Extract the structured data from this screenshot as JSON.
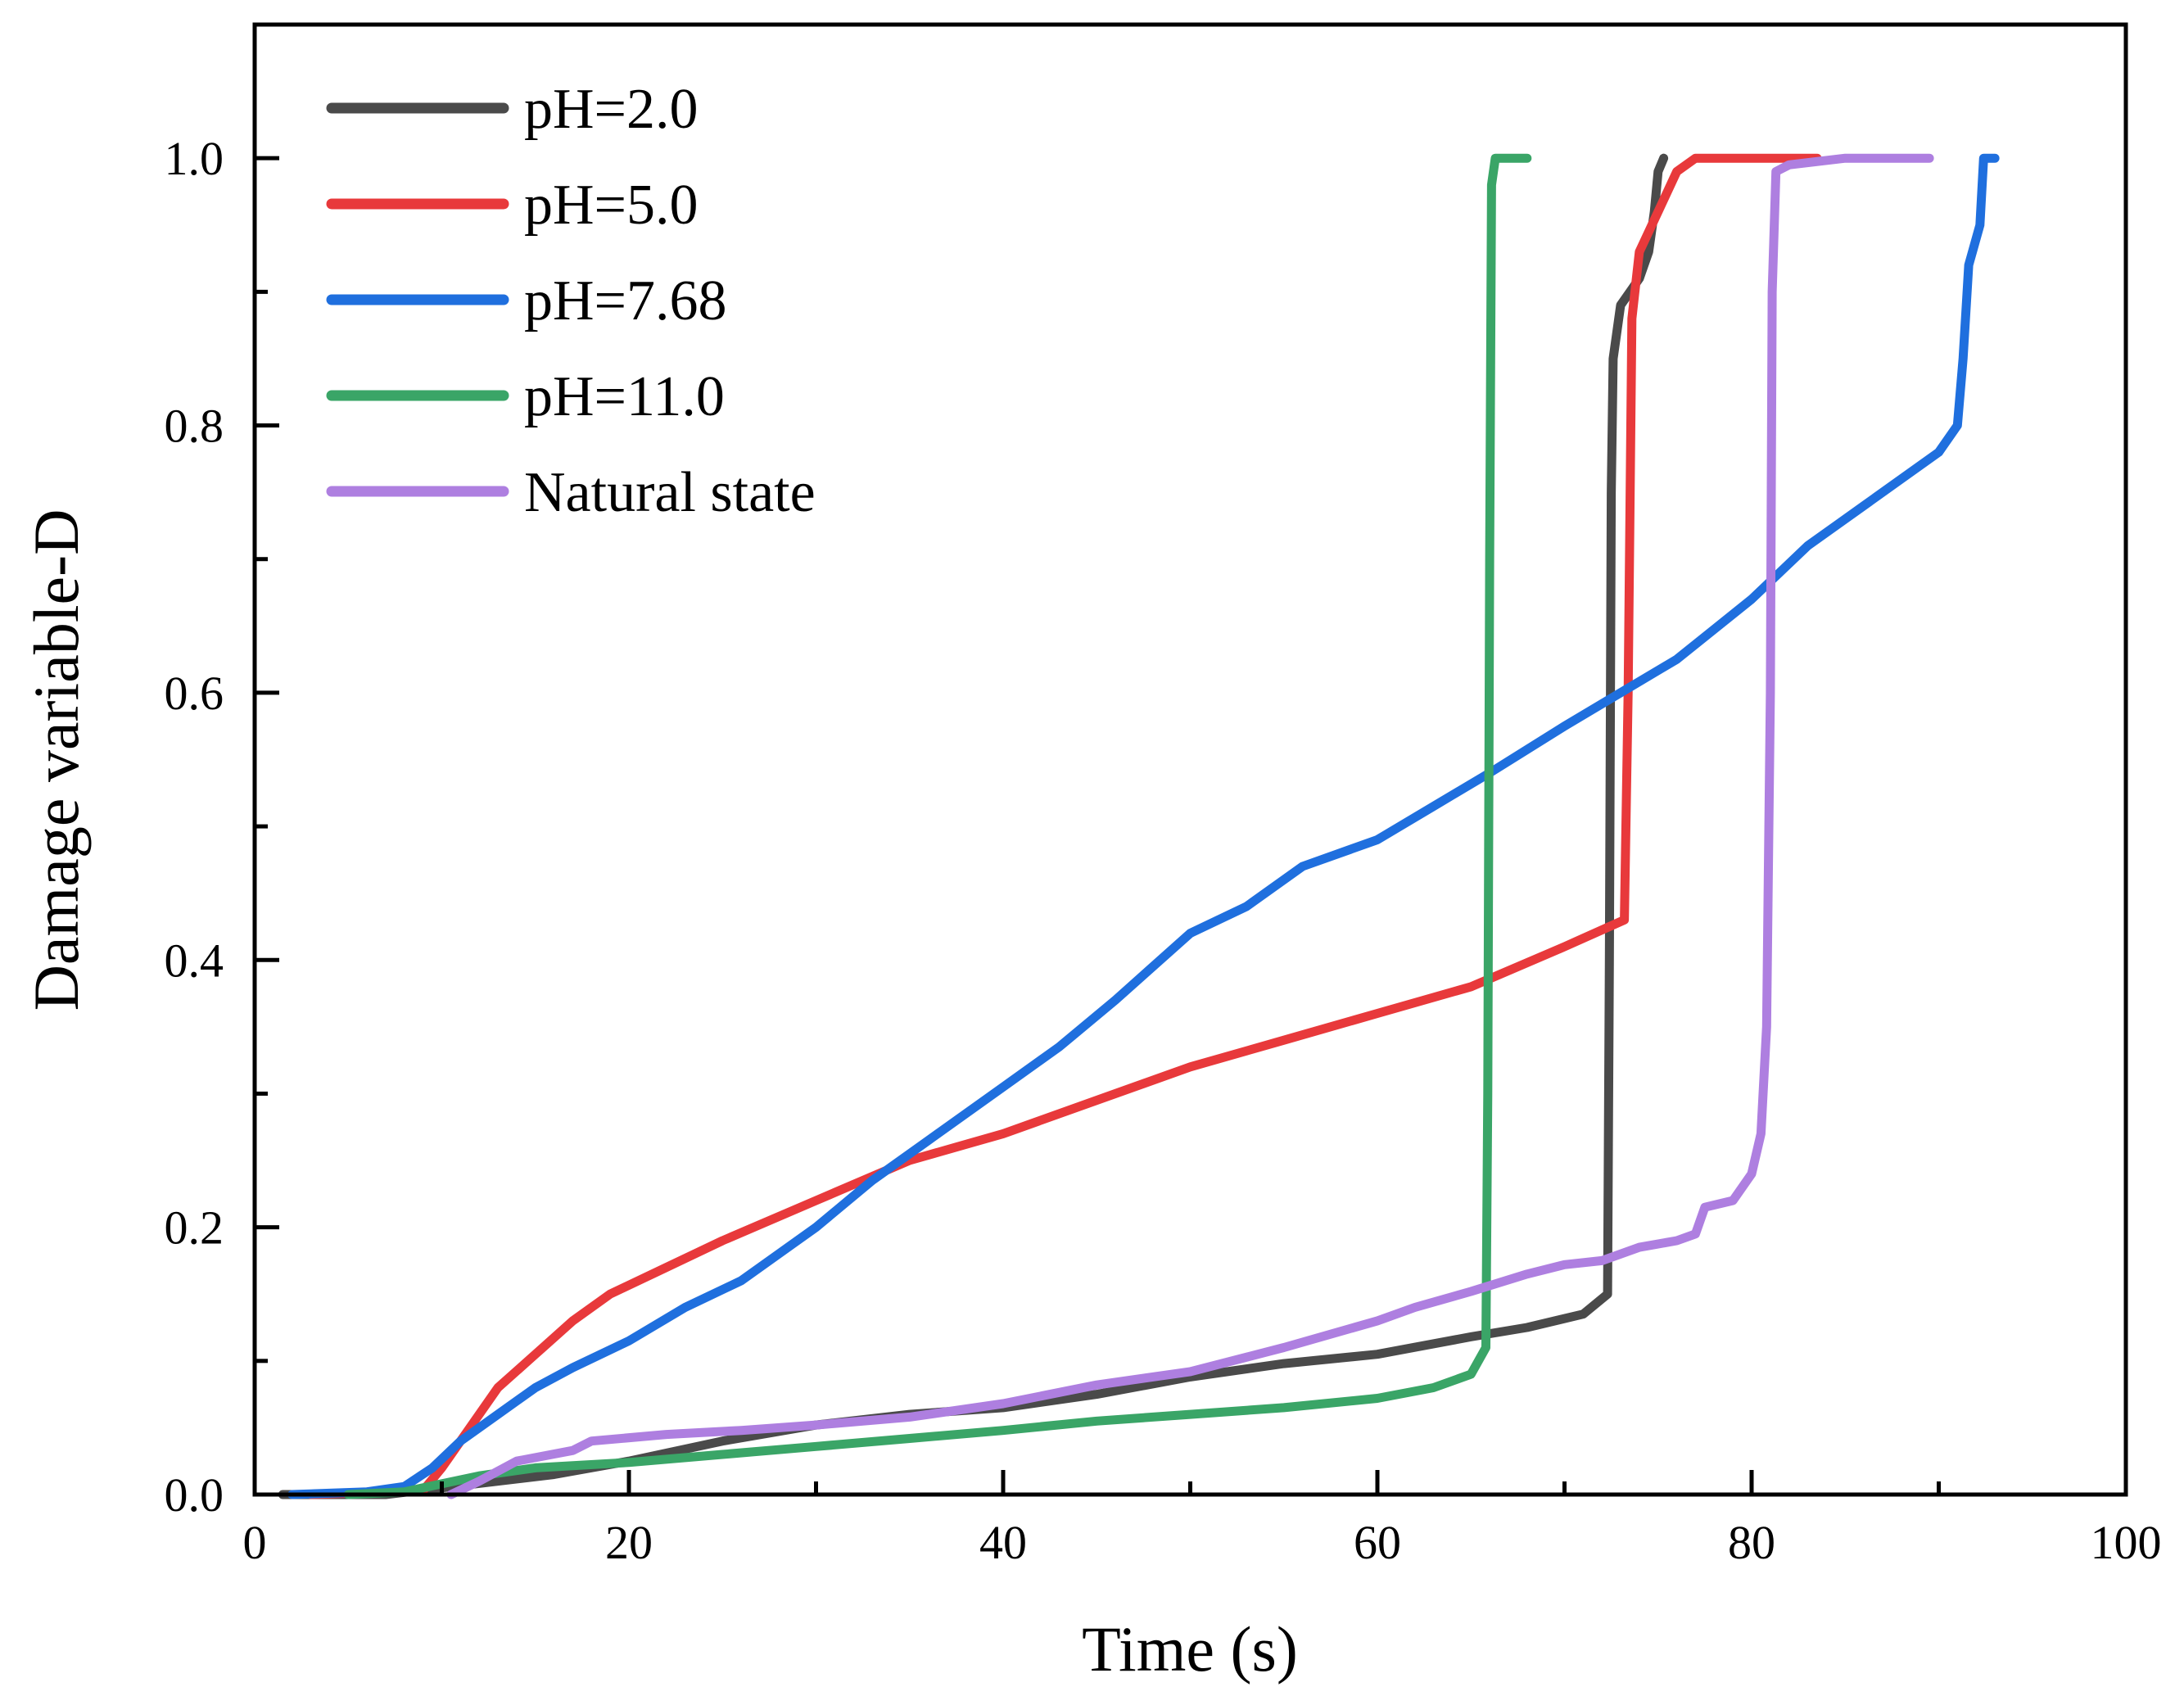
{
  "chart_data": {
    "type": "line",
    "title": "",
    "xlabel": "Time (s)",
    "ylabel": "Damage variable-D",
    "xlim": [
      0,
      100
    ],
    "ylim": [
      0,
      1.1
    ],
    "x_ticks": [
      0,
      20,
      40,
      60,
      80,
      100
    ],
    "x_tick_labels": [
      "0",
      "20",
      "40",
      "60",
      "80",
      "100"
    ],
    "y_ticks": [
      0,
      0.2,
      0.4,
      0.6,
      0.8,
      1.0
    ],
    "y_tick_labels": [
      "0.0",
      "0.2",
      "0.4",
      "0.6",
      "0.8",
      "1.0"
    ],
    "grid": false,
    "legend_position": "top-left",
    "series": [
      {
        "name": "pH=2.0",
        "color": "#4a4a4a",
        "points": [
          [
            1.5,
            0
          ],
          [
            7,
            0
          ],
          [
            10,
            0.005
          ],
          [
            13,
            0.01
          ],
          [
            16,
            0.015
          ],
          [
            20,
            0.025
          ],
          [
            25,
            0.04
          ],
          [
            30,
            0.052
          ],
          [
            35,
            0.06
          ],
          [
            40,
            0.065
          ],
          [
            45,
            0.075
          ],
          [
            50,
            0.088
          ],
          [
            55,
            0.098
          ],
          [
            60,
            0.105
          ],
          [
            65,
            0.118
          ],
          [
            68,
            0.125
          ],
          [
            71,
            0.135
          ],
          [
            72.3,
            0.15
          ],
          [
            72.4,
            0.4
          ],
          [
            72.5,
            0.75
          ],
          [
            72.6,
            0.85
          ],
          [
            73,
            0.89
          ],
          [
            74,
            0.91
          ],
          [
            74.5,
            0.93
          ],
          [
            74.8,
            0.96
          ],
          [
            75,
            0.99
          ],
          [
            75.3,
            1.0
          ]
        ]
      },
      {
        "name": "pH=5.0",
        "color": "#e8393b",
        "points": [
          [
            3,
            0
          ],
          [
            9,
            0.003
          ],
          [
            10,
            0.02
          ],
          [
            11.5,
            0.05
          ],
          [
            13,
            0.08
          ],
          [
            15,
            0.105
          ],
          [
            17,
            0.13
          ],
          [
            19,
            0.15
          ],
          [
            22,
            0.17
          ],
          [
            25,
            0.19
          ],
          [
            30,
            0.22
          ],
          [
            35,
            0.25
          ],
          [
            40,
            0.27
          ],
          [
            45,
            0.295
          ],
          [
            50,
            0.32
          ],
          [
            55,
            0.34
          ],
          [
            60,
            0.36
          ],
          [
            65,
            0.38
          ],
          [
            70,
            0.41
          ],
          [
            73.2,
            0.43
          ],
          [
            73.4,
            0.6
          ],
          [
            73.6,
            0.88
          ],
          [
            74,
            0.93
          ],
          [
            75,
            0.96
          ],
          [
            76,
            0.99
          ],
          [
            77,
            1.0
          ],
          [
            83.5,
            1.0
          ]
        ]
      },
      {
        "name": "pH=7.68",
        "color": "#1f6fde",
        "points": [
          [
            2,
            0
          ],
          [
            6,
            0.002
          ],
          [
            8,
            0.006
          ],
          [
            9.5,
            0.02
          ],
          [
            11,
            0.04
          ],
          [
            13,
            0.06
          ],
          [
            15,
            0.08
          ],
          [
            17,
            0.095
          ],
          [
            20,
            0.115
          ],
          [
            23,
            0.14
          ],
          [
            26,
            0.16
          ],
          [
            30,
            0.2
          ],
          [
            33,
            0.235
          ],
          [
            36,
            0.265
          ],
          [
            40,
            0.305
          ],
          [
            43,
            0.335
          ],
          [
            46,
            0.37
          ],
          [
            50,
            0.42
          ],
          [
            53,
            0.44
          ],
          [
            56,
            0.47
          ],
          [
            60,
            0.49
          ],
          [
            63,
            0.515
          ],
          [
            66,
            0.54
          ],
          [
            70,
            0.575
          ],
          [
            73,
            0.6
          ],
          [
            76,
            0.625
          ],
          [
            80,
            0.67
          ],
          [
            83,
            0.71
          ],
          [
            86,
            0.74
          ],
          [
            88,
            0.76
          ],
          [
            90,
            0.78
          ],
          [
            91,
            0.8
          ],
          [
            91.3,
            0.85
          ],
          [
            91.6,
            0.92
          ],
          [
            92.2,
            0.95
          ],
          [
            92.4,
            1.0
          ],
          [
            93,
            1.0
          ]
        ]
      },
      {
        "name": "pH=11.0",
        "color": "#3aa567",
        "points": [
          [
            5,
            0
          ],
          [
            8,
            0.002
          ],
          [
            10,
            0.008
          ],
          [
            12,
            0.014
          ],
          [
            15,
            0.02
          ],
          [
            20,
            0.024
          ],
          [
            25,
            0.03
          ],
          [
            30,
            0.036
          ],
          [
            35,
            0.042
          ],
          [
            40,
            0.048
          ],
          [
            45,
            0.055
          ],
          [
            50,
            0.06
          ],
          [
            55,
            0.065
          ],
          [
            60,
            0.072
          ],
          [
            63,
            0.08
          ],
          [
            65,
            0.09
          ],
          [
            65.8,
            0.11
          ],
          [
            65.9,
            0.3
          ],
          [
            66,
            0.7
          ],
          [
            66.1,
            0.98
          ],
          [
            66.3,
            1.0
          ],
          [
            68,
            1.0
          ]
        ]
      },
      {
        "name": "Natural state",
        "color": "#ae7fe0",
        "points": [
          [
            10.5,
            0
          ],
          [
            12,
            0.01
          ],
          [
            14,
            0.025
          ],
          [
            17,
            0.033
          ],
          [
            18,
            0.04
          ],
          [
            22,
            0.045
          ],
          [
            26,
            0.048
          ],
          [
            30,
            0.052
          ],
          [
            35,
            0.058
          ],
          [
            40,
            0.068
          ],
          [
            45,
            0.082
          ],
          [
            50,
            0.092
          ],
          [
            55,
            0.11
          ],
          [
            60,
            0.13
          ],
          [
            62,
            0.14
          ],
          [
            65,
            0.152
          ],
          [
            68,
            0.165
          ],
          [
            70,
            0.172
          ],
          [
            72,
            0.175
          ],
          [
            74,
            0.185
          ],
          [
            76,
            0.19
          ],
          [
            77,
            0.195
          ],
          [
            77.5,
            0.215
          ],
          [
            79,
            0.22
          ],
          [
            80,
            0.24
          ],
          [
            80.5,
            0.27
          ],
          [
            80.8,
            0.35
          ],
          [
            81,
            0.6
          ],
          [
            81.1,
            0.9
          ],
          [
            81.3,
            0.99
          ],
          [
            82,
            0.995
          ],
          [
            85,
            1.0
          ],
          [
            89.5,
            1.0
          ]
        ]
      }
    ]
  }
}
